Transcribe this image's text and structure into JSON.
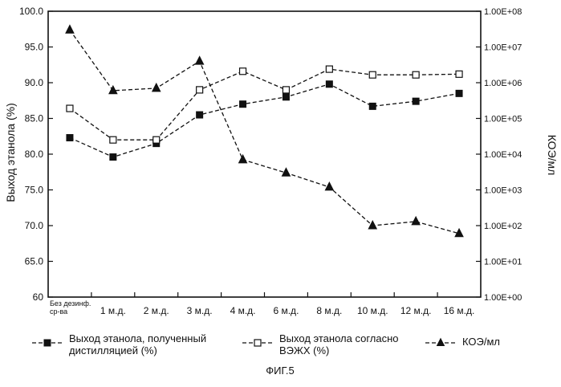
{
  "chart_data": {
    "type": "line",
    "categories": [
      "Без дезинф.\nср-ва",
      "1 м.д.",
      "2 м.д.",
      "3 м.д.",
      "4 м.д.",
      "6 м.д.",
      "8 м.д.",
      "10 м.д.",
      "12 м.д.",
      "16 м.д."
    ],
    "ylabel": "Выход этанола (%)",
    "ylabel_right": "КОЭ/мл",
    "caption": "ФИГ.5",
    "ylim": [
      60,
      100
    ],
    "yticks": [
      "100.0",
      "95.0",
      "90.0",
      "85.0",
      "80.0",
      "75.0",
      "70.0",
      "65.0",
      "60"
    ],
    "ylim_right_log10": [
      0,
      8
    ],
    "yticks_right": [
      "1.00E+08",
      "1.00E+07",
      "1.00E+06",
      "1.00E+05",
      "1.00E+04",
      "1.00E+03",
      "1.00E+02",
      "1.00E+01",
      "1.00E+00"
    ],
    "right_axis_scale": "log",
    "grid": false,
    "legend_position": "bottom",
    "series": [
      {
        "name": "Выход этанола, полученный\nдистилляцией (%)",
        "axis": "left",
        "marker": "filled-square",
        "line_style": "dashed",
        "color": "#111111",
        "values": [
          82.3,
          79.6,
          81.5,
          85.5,
          87.0,
          88.0,
          89.8,
          86.7,
          87.4,
          88.5
        ]
      },
      {
        "name": "Выход этанола согласно\nВЭЖХ (%)",
        "axis": "left",
        "marker": "open-square",
        "line_style": "dashed",
        "color": "#111111",
        "values": [
          86.4,
          82.0,
          82.0,
          89.0,
          91.6,
          89.0,
          91.9,
          91.1,
          91.1,
          91.2
        ]
      },
      {
        "name": "КОЭ/мл",
        "axis": "right",
        "marker": "filled-triangle",
        "line_style": "dashed",
        "color": "#111111",
        "values": [
          30000000,
          600000,
          700000,
          4000000,
          7000,
          3000,
          1200,
          100,
          130,
          60
        ]
      }
    ]
  }
}
